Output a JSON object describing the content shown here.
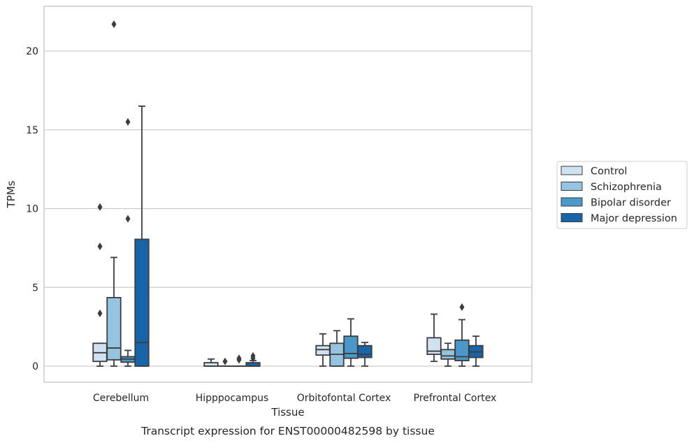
{
  "caption": "Transcript expression for ENST00000482598 by tissue",
  "chart_data": {
    "type": "box",
    "xlabel": "Tissue",
    "ylabel": "TPMs",
    "ylim": [
      -1.05,
      22.7
    ],
    "yticks": [
      "0",
      "5",
      "10",
      "15",
      "20"
    ],
    "grid": "horizontal",
    "legend_position": "right",
    "categories": [
      "Cerebellum",
      "Hipppocampus",
      "Orbitofontal Cortex",
      "Prefrontal Cortex"
    ],
    "series": [
      {
        "name": "Control",
        "color": "#d0e1f2",
        "boxes": [
          {
            "whislo": 0.0,
            "q1": 0.3,
            "med": 0.85,
            "q3": 1.45,
            "whishi": 1.45,
            "fliers": [
              3.35,
              7.6,
              10.1
            ]
          },
          {
            "whislo": 0.0,
            "q1": 0.0,
            "med": 0.0,
            "q3": 0.22,
            "whishi": 0.45,
            "fliers": []
          },
          {
            "whislo": 0.0,
            "q1": 0.7,
            "med": 1.05,
            "q3": 1.3,
            "whishi": 2.05,
            "fliers": []
          },
          {
            "whislo": 0.3,
            "q1": 0.75,
            "med": 0.95,
            "q3": 1.8,
            "whishi": 3.3,
            "fliers": []
          }
        ]
      },
      {
        "name": "Schizophrenia",
        "color": "#94c4df",
        "boxes": [
          {
            "whislo": 0.0,
            "q1": 0.4,
            "med": 1.15,
            "q3": 4.35,
            "whishi": 6.9,
            "fliers": [
              21.7
            ]
          },
          {
            "whislo": 0.0,
            "q1": 0.0,
            "med": 0.0,
            "q3": 0.0,
            "whishi": 0.0,
            "fliers": [
              0.3
            ]
          },
          {
            "whislo": 0.0,
            "q1": 0.0,
            "med": 0.75,
            "q3": 1.45,
            "whishi": 2.25,
            "fliers": []
          },
          {
            "whislo": 0.0,
            "q1": 0.45,
            "med": 0.65,
            "q3": 1.05,
            "whishi": 1.45,
            "fliers": []
          }
        ]
      },
      {
        "name": "Bipolar disorder",
        "color": "#4a98c9",
        "boxes": [
          {
            "whislo": 0.0,
            "q1": 0.25,
            "med": 0.45,
            "q3": 0.6,
            "whishi": 1.0,
            "fliers": [
              9.35,
              15.5
            ]
          },
          {
            "whislo": 0.0,
            "q1": 0.0,
            "med": 0.0,
            "q3": 0.0,
            "whishi": 0.0,
            "fliers": [
              0.4,
              0.5
            ]
          },
          {
            "whislo": 0.0,
            "q1": 0.5,
            "med": 0.8,
            "q3": 1.9,
            "whishi": 3.0,
            "fliers": []
          },
          {
            "whislo": 0.0,
            "q1": 0.35,
            "med": 0.6,
            "q3": 1.65,
            "whishi": 2.95,
            "fliers": [
              3.75
            ]
          }
        ]
      },
      {
        "name": "Major depression",
        "color": "#1764ab",
        "boxes": [
          {
            "whislo": 0.0,
            "q1": 0.0,
            "med": 1.5,
            "q3": 8.05,
            "whishi": 16.5,
            "fliers": []
          },
          {
            "whislo": 0.0,
            "q1": 0.0,
            "med": 0.0,
            "q3": 0.22,
            "whishi": 0.35,
            "fliers": [
              0.5,
              0.65
            ]
          },
          {
            "whislo": 0.0,
            "q1": 0.55,
            "med": 0.75,
            "q3": 1.3,
            "whishi": 1.5,
            "fliers": []
          },
          {
            "whislo": 0.0,
            "q1": 0.55,
            "med": 0.9,
            "q3": 1.3,
            "whishi": 1.9,
            "fliers": []
          }
        ]
      }
    ]
  }
}
